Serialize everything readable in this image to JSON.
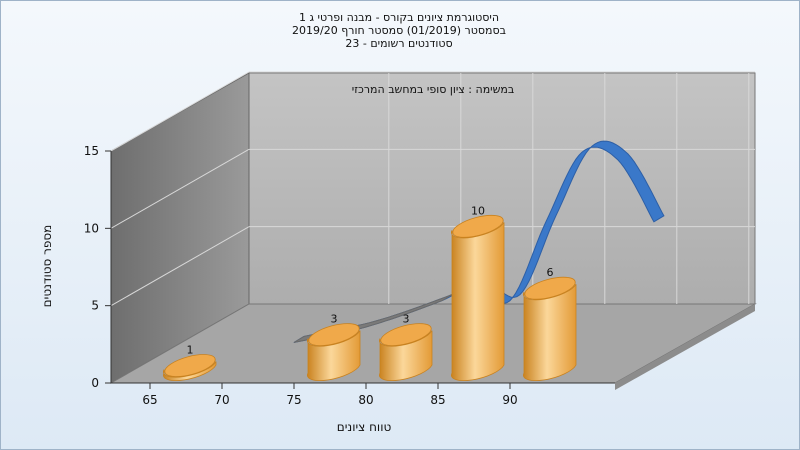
{
  "chart_data": {
    "type": "bar",
    "title_lines": [
      "היסטוגרמת ציונים בקורס - מבנה ופרטי ג 1",
      "בסמסטר  (01/2019)  סמסטר חורף 2019/20",
      "סטודנטים רשומים - 23"
    ],
    "annotation": "במשימה : ציון סופי במחשב המרכזי",
    "xlabel": "טווח ציונים",
    "ylabel": "מספר סטודנטים",
    "x_ticks": [
      "65",
      "70",
      "75",
      "80",
      "85",
      "90"
    ],
    "y_ticks": [
      0,
      5,
      10,
      15
    ],
    "ylim": [
      0,
      15
    ],
    "bars": [
      {
        "x": 67.5,
        "value": 1
      },
      {
        "x": 77.5,
        "value": 3
      },
      {
        "x": 82.5,
        "value": 3
      },
      {
        "x": 87.5,
        "value": 10
      },
      {
        "x": 92.5,
        "value": 6
      }
    ],
    "curve": {
      "x": [
        70,
        75,
        80,
        82.5,
        85,
        87.5,
        90,
        92.5,
        95
      ],
      "y": [
        0.2,
        1.2,
        2.8,
        3.8,
        2.9,
        8.0,
        12.5,
        12.0,
        8.0
      ]
    },
    "grid": true,
    "colors": {
      "bar": "#f0a94a",
      "bar_light": "#fbd79a",
      "bar_dark": "#c9821f",
      "curve": "#3a78c9",
      "curve_dark": "#2d5fa6",
      "back_wall": "#b9b9b9",
      "side_wall": "#8a8a8a",
      "floor": "#a8a8a8",
      "gridline": "#d8d8d8"
    }
  }
}
